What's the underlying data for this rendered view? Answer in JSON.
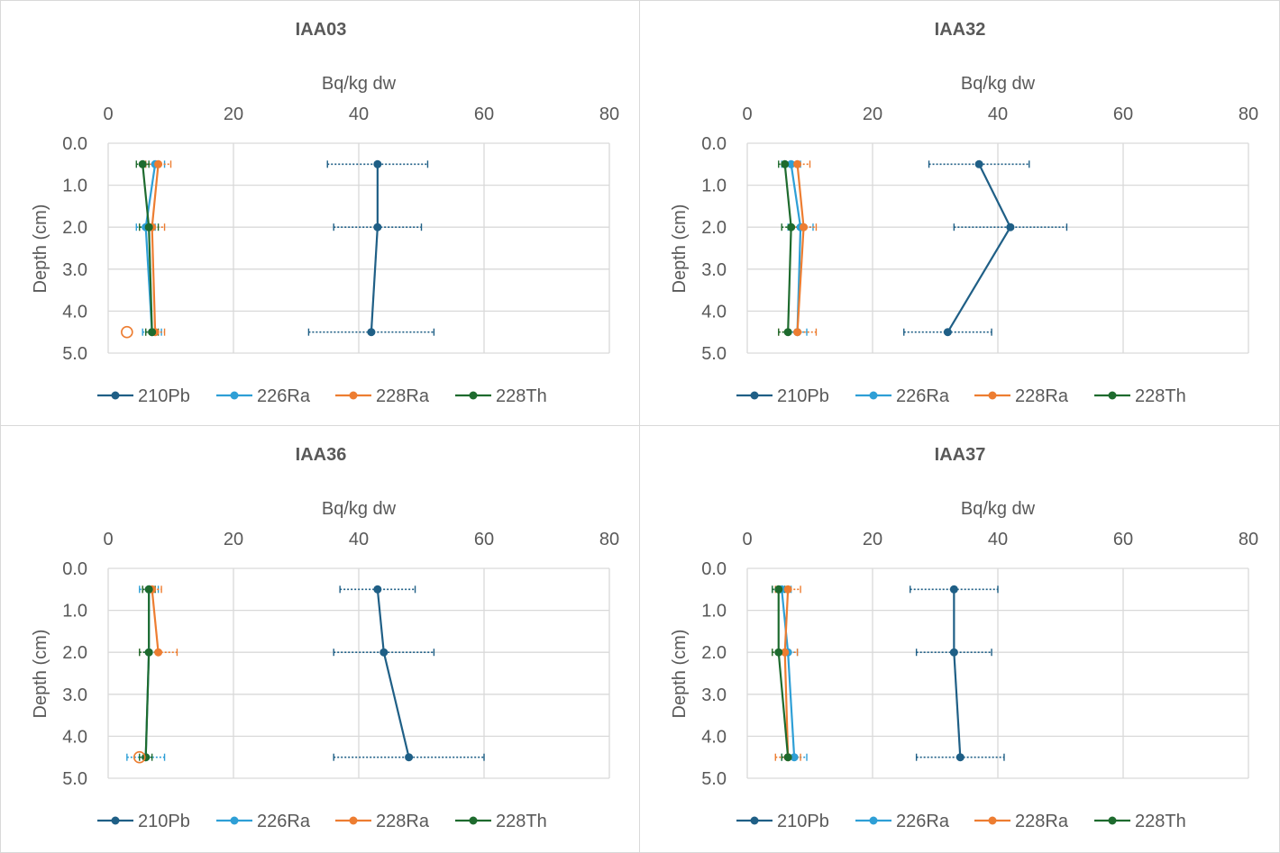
{
  "chart_data": [
    {
      "type": "line",
      "title": "IAA03",
      "xlabel": "Bq/kg dw",
      "ylabel": "Depth (cm)",
      "xlim": [
        0,
        80
      ],
      "ylim": [
        0,
        5
      ],
      "y_reversed": true,
      "x_axis_position": "top",
      "x_ticks": [
        "0",
        "20",
        "40",
        "60",
        "80"
      ],
      "y_ticks": [
        "0.0",
        "1.0",
        "2.0",
        "3.0",
        "4.0",
        "5.0"
      ],
      "grid": true,
      "legend_position": "bottom",
      "series": [
        {
          "name": "210Pb",
          "color": "#1f5f86",
          "y": [
            0.5,
            2.0,
            4.5
          ],
          "x": [
            43,
            43,
            42
          ],
          "xerr": [
            8,
            7,
            10
          ]
        },
        {
          "name": "226Ra",
          "color": "#2e9fd6",
          "y": [
            0.5,
            2.0,
            4.5
          ],
          "x": [
            7.5,
            6,
            7
          ],
          "xerr": [
            1.5,
            1.5,
            1.5
          ]
        },
        {
          "name": "228Ra",
          "color": "#ed7d31",
          "y": [
            0.5,
            2.0,
            4.5
          ],
          "x": [
            8,
            7,
            7.5
          ],
          "xerr": [
            2,
            2,
            1.5
          ]
        },
        {
          "name": "228Th",
          "color": "#1e6b2e",
          "y": [
            0.5,
            2.0,
            4.5
          ],
          "x": [
            5.5,
            6.5,
            7
          ],
          "xerr": [
            1,
            1.5,
            1
          ]
        }
      ],
      "extra_points": [
        {
          "series": "228Ra",
          "x": 3,
          "y": 4.5,
          "marker": "open-circle"
        }
      ]
    },
    {
      "type": "line",
      "title": "IAA32",
      "xlabel": "Bq/kg dw",
      "ylabel": "Depth (cm)",
      "xlim": [
        0,
        80
      ],
      "ylim": [
        0,
        5
      ],
      "y_reversed": true,
      "x_axis_position": "top",
      "x_ticks": [
        "0",
        "20",
        "40",
        "60",
        "80"
      ],
      "y_ticks": [
        "0.0",
        "1.0",
        "2.0",
        "3.0",
        "4.0",
        "5.0"
      ],
      "grid": true,
      "legend_position": "bottom",
      "series": [
        {
          "name": "210Pb",
          "color": "#1f5f86",
          "y": [
            0.5,
            2.0,
            4.5
          ],
          "x": [
            37,
            42,
            32
          ],
          "xerr": [
            8,
            9,
            7
          ]
        },
        {
          "name": "226Ra",
          "color": "#2e9fd6",
          "y": [
            0.5,
            2.0,
            4.5
          ],
          "x": [
            7,
            8.5,
            8
          ],
          "xerr": [
            1.5,
            2,
            1.5
          ]
        },
        {
          "name": "228Ra",
          "color": "#ed7d31",
          "y": [
            0.5,
            2.0,
            4.5
          ],
          "x": [
            8,
            9,
            8
          ],
          "xerr": [
            2,
            2,
            3
          ]
        },
        {
          "name": "228Th",
          "color": "#1e6b2e",
          "y": [
            0.5,
            2.0,
            4.5
          ],
          "x": [
            6,
            7,
            6.5
          ],
          "xerr": [
            1,
            1.5,
            1.5
          ]
        }
      ],
      "extra_points": []
    },
    {
      "type": "line",
      "title": "IAA36",
      "xlabel": "Bq/kg dw",
      "ylabel": "Depth (cm)",
      "xlim": [
        0,
        80
      ],
      "ylim": [
        0,
        5
      ],
      "y_reversed": true,
      "x_axis_position": "top",
      "x_ticks": [
        "0",
        "20",
        "40",
        "60",
        "80"
      ],
      "y_ticks": [
        "0.0",
        "1.0",
        "2.0",
        "3.0",
        "4.0",
        "5.0"
      ],
      "grid": true,
      "legend_position": "bottom",
      "series": [
        {
          "name": "210Pb",
          "color": "#1f5f86",
          "y": [
            0.5,
            2.0,
            4.5
          ],
          "x": [
            43,
            44,
            48
          ],
          "xerr": [
            6,
            8,
            12
          ]
        },
        {
          "name": "226Ra",
          "color": "#2e9fd6",
          "y": [
            0.5,
            2.0,
            4.5
          ],
          "x": [
            6.5,
            6.5,
            6
          ],
          "xerr": [
            1.5,
            1.5,
            3
          ]
        },
        {
          "name": "228Ra",
          "color": "#ed7d31",
          "y": [
            0.5,
            2.0,
            4.5
          ],
          "x": [
            7,
            8,
            null
          ],
          "xerr": [
            1.5,
            3,
            null
          ]
        },
        {
          "name": "228Th",
          "color": "#1e6b2e",
          "y": [
            0.5,
            2.0,
            4.5
          ],
          "x": [
            6.5,
            6.5,
            6
          ],
          "xerr": [
            1,
            1.5,
            1
          ]
        }
      ],
      "extra_points": [
        {
          "series": "228Ra",
          "x": 5,
          "y": 4.5,
          "marker": "open-circle"
        }
      ]
    },
    {
      "type": "line",
      "title": "IAA37",
      "xlabel": "Bq/kg dw",
      "ylabel": "Depth (cm)",
      "xlim": [
        0,
        80
      ],
      "ylim": [
        0,
        5
      ],
      "y_reversed": true,
      "x_axis_position": "top",
      "x_ticks": [
        "0",
        "20",
        "40",
        "60",
        "80"
      ],
      "y_ticks": [
        "0.0",
        "1.0",
        "2.0",
        "3.0",
        "4.0",
        "5.0"
      ],
      "grid": true,
      "legend_position": "bottom",
      "series": [
        {
          "name": "210Pb",
          "color": "#1f5f86",
          "y": [
            0.5,
            2.0,
            4.5
          ],
          "x": [
            33,
            33,
            34
          ],
          "xerr": [
            7,
            6,
            7
          ]
        },
        {
          "name": "226Ra",
          "color": "#2e9fd6",
          "y": [
            0.5,
            2.0,
            4.5
          ],
          "x": [
            5.5,
            6.5,
            7.5
          ],
          "xerr": [
            1.5,
            1.5,
            2
          ]
        },
        {
          "name": "228Ra",
          "color": "#ed7d31",
          "y": [
            0.5,
            2.0,
            4.5
          ],
          "x": [
            6.5,
            6,
            6.5
          ],
          "xerr": [
            2,
            2,
            2
          ]
        },
        {
          "name": "228Th",
          "color": "#1e6b2e",
          "y": [
            0.5,
            2.0,
            4.5
          ],
          "x": [
            5,
            5,
            6.5
          ],
          "xerr": [
            1,
            1,
            1
          ]
        }
      ],
      "extra_points": []
    }
  ]
}
